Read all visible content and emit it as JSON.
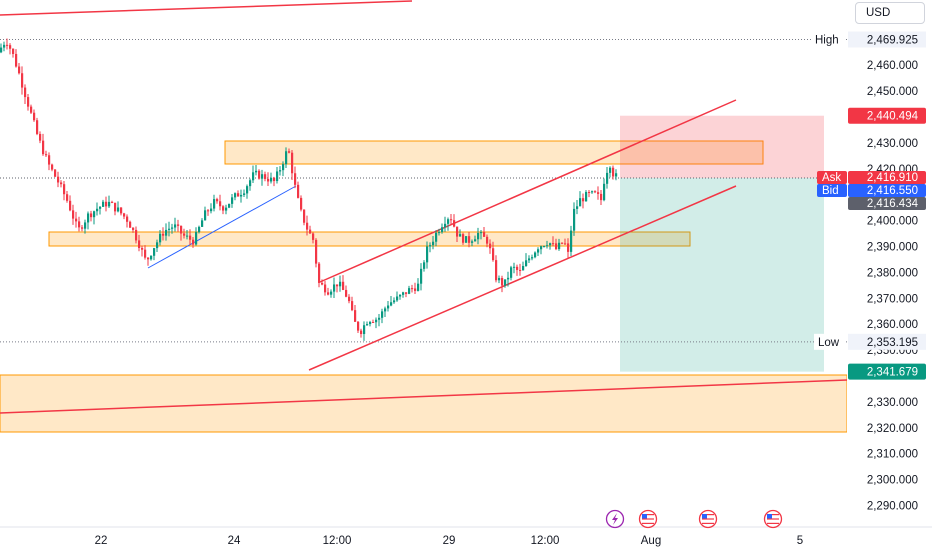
{
  "currency": "USD",
  "price_axis": {
    "ticks": [
      {
        "v": 2460,
        "label": "2,460.000"
      },
      {
        "v": 2450,
        "label": "2,450.000"
      },
      {
        "v": 2440,
        "label": "2,440.000"
      },
      {
        "v": 2430,
        "label": "2,430.000"
      },
      {
        "v": 2420,
        "label": "2,420.000"
      },
      {
        "v": 2410,
        "label": "2,410.000"
      },
      {
        "v": 2400,
        "label": "2,400.000"
      },
      {
        "v": 2390,
        "label": "2,390.000"
      },
      {
        "v": 2380,
        "label": "2,380.000"
      },
      {
        "v": 2370,
        "label": "2,370.000"
      },
      {
        "v": 2360,
        "label": "2,360.000"
      },
      {
        "v": 2350,
        "label": "2,350.000"
      },
      {
        "v": 2330,
        "label": "2,330.000"
      },
      {
        "v": 2320,
        "label": "2,320.000"
      },
      {
        "v": 2310,
        "label": "2,310.000"
      },
      {
        "v": 2300,
        "label": "2,300.000"
      },
      {
        "v": 2290,
        "label": "2,290.000"
      }
    ]
  },
  "price_tags": {
    "high": {
      "name": "High",
      "value": "2,469.925"
    },
    "low": {
      "name": "Low",
      "value": "2,353.195"
    },
    "take_profit": {
      "value": "2,440.494",
      "color": "#f23645"
    },
    "ask": {
      "name": "Ask",
      "value": "2,416.910",
      "color": "#f23645"
    },
    "bid": {
      "name": "Bid",
      "value": "2,416.550",
      "color": "#2962ff"
    },
    "last": {
      "value": "2,416.434",
      "color": "#5d606b"
    },
    "stop": {
      "value": "2,341.679",
      "color": "#089981"
    }
  },
  "time_axis": {
    "labels": [
      "22",
      "24",
      "12:00",
      "29",
      "12:00",
      "Aug",
      "5"
    ]
  },
  "event_icons": [
    "lightning-icon",
    "us-flag-icon",
    "us-flag-icon",
    "us-flag-icon",
    "us-flag-icon"
  ],
  "colors": {
    "up": "#089981",
    "down": "#f23645",
    "trendline": "#f23645",
    "blue_line": "#2962ff",
    "zone_fill": "rgba(255, 152, 0, 0.22)",
    "zone_border": "#ff9800",
    "target_zone": "rgba(242, 54, 69, 0.22)",
    "stop_zone": "rgba(8, 153, 129, 0.18)"
  },
  "chart_data": {
    "type": "candlestick",
    "instrument_currency": "USD",
    "ylim": [
      2283,
      2485
    ],
    "high": 2469.925,
    "low": 2353.195,
    "ask": 2416.91,
    "bid": 2416.55,
    "last": 2416.434,
    "entry": 2416.434,
    "target": 2440.494,
    "stop": 2341.679,
    "x_labels": [
      "22",
      "24",
      "12:00",
      "29",
      "12:00",
      "Aug",
      "5"
    ],
    "price_path": [
      [
        0,
        2465
      ],
      [
        8,
        2469.9
      ],
      [
        14,
        2465
      ],
      [
        20,
        2458
      ],
      [
        30,
        2445
      ],
      [
        40,
        2432
      ],
      [
        50,
        2422
      ],
      [
        60,
        2415
      ],
      [
        70,
        2407
      ],
      [
        80,
        2396
      ],
      [
        90,
        2402
      ],
      [
        100,
        2405
      ],
      [
        110,
        2407
      ],
      [
        120,
        2404
      ],
      [
        130,
        2400
      ],
      [
        140,
        2392
      ],
      [
        148,
        2384
      ],
      [
        156,
        2390
      ],
      [
        166,
        2396
      ],
      [
        176,
        2398
      ],
      [
        186,
        2394
      ],
      [
        196,
        2392
      ],
      [
        206,
        2402
      ],
      [
        216,
        2407
      ],
      [
        226,
        2405
      ],
      [
        236,
        2409
      ],
      [
        246,
        2412
      ],
      [
        256,
        2418
      ],
      [
        266,
        2417
      ],
      [
        276,
        2415
      ],
      [
        282,
        2420
      ],
      [
        290,
        2428
      ],
      [
        297,
        2413
      ],
      [
        302,
        2404
      ],
      [
        310,
        2396
      ],
      [
        316,
        2392
      ],
      [
        320,
        2376
      ],
      [
        330,
        2373
      ],
      [
        340,
        2376
      ],
      [
        350,
        2370
      ],
      [
        356,
        2361
      ],
      [
        362,
        2357
      ],
      [
        370,
        2362
      ],
      [
        380,
        2362
      ],
      [
        390,
        2368
      ],
      [
        400,
        2370
      ],
      [
        410,
        2373
      ],
      [
        420,
        2375
      ],
      [
        428,
        2388
      ],
      [
        438,
        2395
      ],
      [
        446,
        2400
      ],
      [
        452,
        2402
      ],
      [
        460,
        2394
      ],
      [
        470,
        2392
      ],
      [
        480,
        2395
      ],
      [
        490,
        2392
      ],
      [
        498,
        2378
      ],
      [
        506,
        2375
      ],
      [
        514,
        2382
      ],
      [
        522,
        2380
      ],
      [
        530,
        2385
      ],
      [
        540,
        2390
      ],
      [
        550,
        2392
      ],
      [
        558,
        2389
      ],
      [
        566,
        2392
      ],
      [
        570,
        2387
      ],
      [
        575,
        2403
      ],
      [
        582,
        2408
      ],
      [
        590,
        2410
      ],
      [
        598,
        2410
      ],
      [
        603,
        2408
      ],
      [
        607,
        2418
      ],
      [
        612,
        2422
      ],
      [
        616,
        2417
      ]
    ]
  }
}
